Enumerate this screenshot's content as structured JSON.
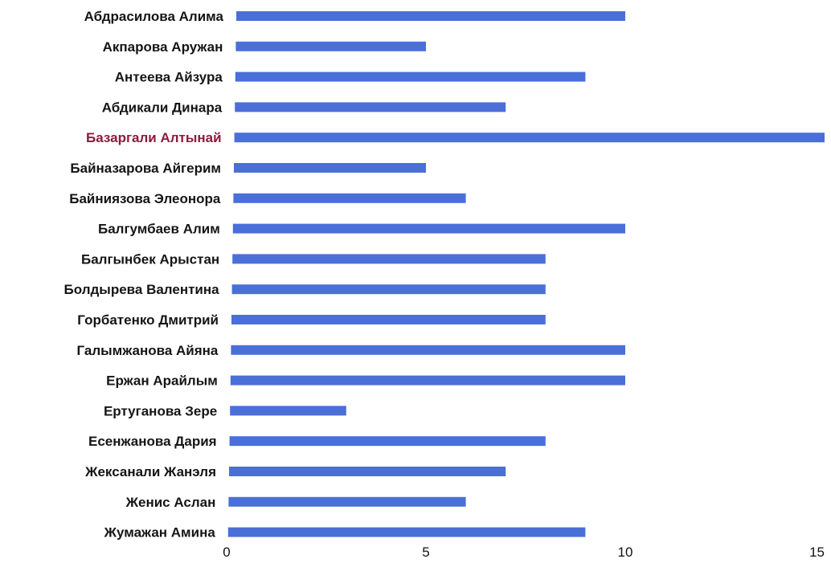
{
  "chart_data": {
    "type": "bar",
    "orientation": "horizontal",
    "categories": [
      "Абдрасилова Алима",
      "Акпарова Аружан",
      "Антеева Айзура",
      "Абдикали Динара",
      "Базаргали Алтынай",
      "Байназарова Айгерим",
      "Байниязова Элеонора",
      "Балгумбаев Алим",
      "Балгынбек Арыстан",
      "Болдырева Валентина",
      "Горбатенко Дмитрий",
      "Галымжанова Айяна",
      "Ержан Арайлым",
      "Ертуганова Зере",
      "Есенжанова Дария",
      "Жексанали Жанэля",
      "Женис Аслан",
      "Жумажан Амина"
    ],
    "values": [
      10,
      5,
      9,
      7,
      15,
      5,
      6,
      10,
      8,
      8,
      8,
      10,
      10,
      3,
      8,
      7,
      6,
      9
    ],
    "highlighted_category": "Базаргали Алтынай",
    "xlim": [
      0,
      15
    ],
    "xticks": [
      "0",
      "5",
      "10",
      "15"
    ],
    "grid": false,
    "colors": {
      "bar": "#4a6fd8",
      "label": "#151515",
      "highlight_label": "#8b1c3c"
    }
  }
}
